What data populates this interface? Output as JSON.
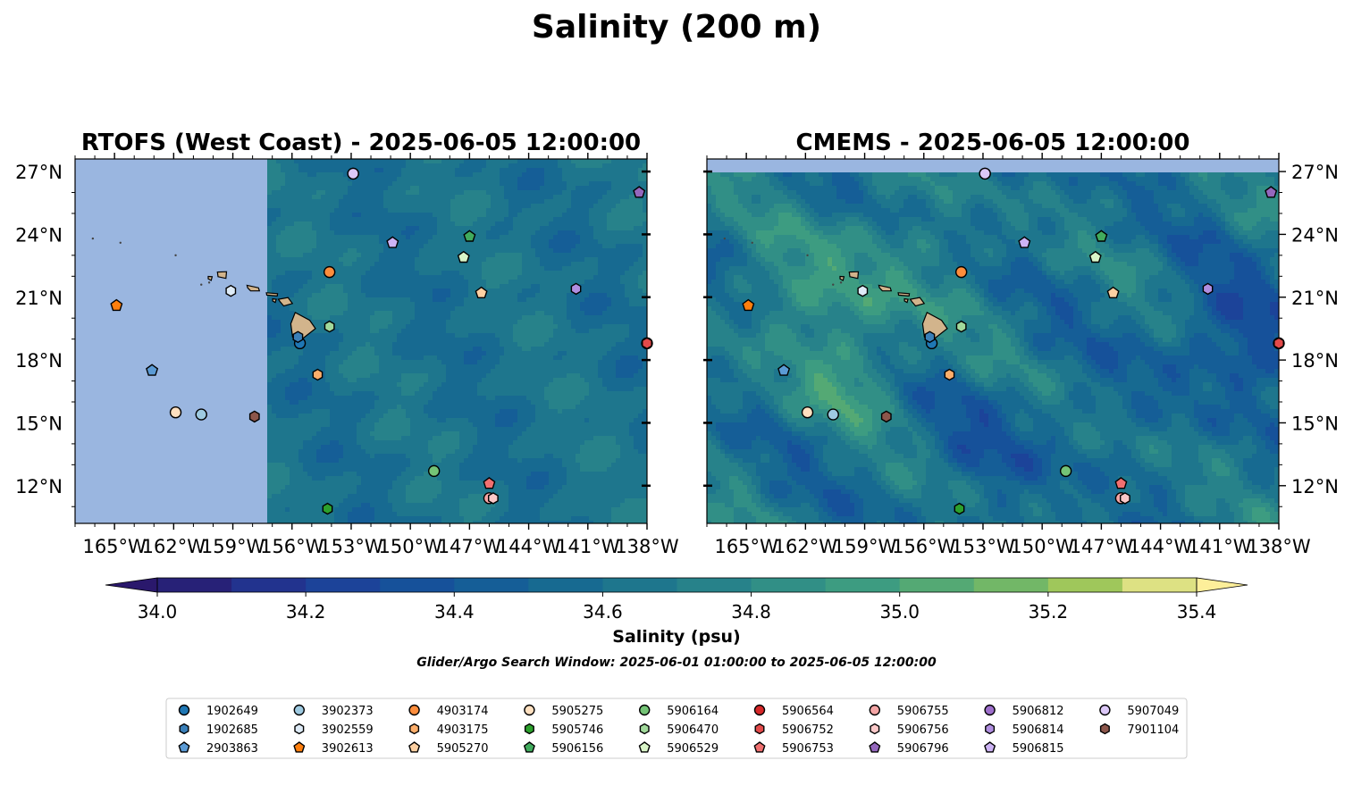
{
  "title": "Salinity (200 m)",
  "panels": [
    {
      "title": "RTOFS (West Coast) - 2025-06-05 12:00:00",
      "model_coverage_lon_min": -157.3
    },
    {
      "title": "CMEMS - 2025-06-05 12:00:00",
      "model_coverage_lat_max": 27.0
    }
  ],
  "colorbar": {
    "label": "Salinity (psu)",
    "ticks": [
      "34.0",
      "34.2",
      "34.4",
      "34.6",
      "34.8",
      "35.0",
      "35.2",
      "35.4"
    ],
    "tick_values": [
      34.0,
      34.2,
      34.4,
      34.6,
      34.8,
      35.0,
      35.2,
      35.4
    ],
    "levels_min": 34.0,
    "levels_max": 35.4,
    "level_step": 0.1,
    "extend": "both",
    "colormap": "haline"
  },
  "subtitle": "Glider/Argo Search Window: 2025-06-01 01:00:00 to 2025-06-05 12:00:00",
  "colors": {
    "land": "#d2b48c",
    "no_data": "#9ab6e0"
  },
  "chart_data": {
    "type": "scatter",
    "title": "Salinity (200 m)",
    "xlim": [
      -167,
      -138
    ],
    "ylim": [
      10.2,
      27.6
    ],
    "x_ticks": [
      "165°W",
      "162°W",
      "159°W",
      "156°W",
      "153°W",
      "150°W",
      "147°W",
      "144°W",
      "141°W",
      "138°W"
    ],
    "x_tick_values": [
      -165,
      -162,
      -159,
      -156,
      -153,
      -150,
      -147,
      -144,
      -141,
      -138
    ],
    "y_ticks": [
      "12°N",
      "15°N",
      "18°N",
      "21°N",
      "24°N",
      "27°N"
    ],
    "y_tick_values": [
      12,
      15,
      18,
      21,
      24,
      27
    ],
    "legend_position": "bottom-center",
    "legend_columns": 9,
    "series": [
      {
        "name": "1902649",
        "marker": "circle",
        "color": "#1f77b4",
        "lon": -155.6,
        "lat": 18.8
      },
      {
        "name": "1902685",
        "marker": "hexagon",
        "color": "#3a7fb8",
        "lon": -155.7,
        "lat": 19.1
      },
      {
        "name": "2903863",
        "marker": "pentagon",
        "color": "#5b9bd5",
        "lon": -163.1,
        "lat": 17.5
      },
      {
        "name": "3902373",
        "marker": "circle",
        "color": "#9ecae1",
        "lon": -160.6,
        "lat": 15.4
      },
      {
        "name": "3902559",
        "marker": "hexagon",
        "color": "#deebf7",
        "lon": -159.1,
        "lat": 21.3
      },
      {
        "name": "3902613",
        "marker": "pentagon",
        "color": "#ff7f0e",
        "lon": -164.9,
        "lat": 20.6
      },
      {
        "name": "4903174",
        "marker": "circle",
        "color": "#fd8d3c",
        "lon": -154.1,
        "lat": 22.2
      },
      {
        "name": "4903175",
        "marker": "hexagon",
        "color": "#fdae6b",
        "lon": -154.7,
        "lat": 17.3
      },
      {
        "name": "5905270",
        "marker": "pentagon",
        "color": "#fdd0a2",
        "lon": -146.4,
        "lat": 21.2
      },
      {
        "name": "5905275",
        "marker": "circle",
        "color": "#ffe0c0",
        "lon": -161.9,
        "lat": 15.5
      },
      {
        "name": "5905746",
        "marker": "hexagon",
        "color": "#2ca02c",
        "lon": -154.2,
        "lat": 10.9
      },
      {
        "name": "5906156",
        "marker": "pentagon",
        "color": "#41ab5d",
        "lon": -147.0,
        "lat": 23.9
      },
      {
        "name": "5906164",
        "marker": "circle",
        "color": "#74c476",
        "lon": -148.8,
        "lat": 12.7
      },
      {
        "name": "5906470",
        "marker": "hexagon",
        "color": "#a1d99b",
        "lon": -154.1,
        "lat": 19.6
      },
      {
        "name": "5906529",
        "marker": "pentagon",
        "color": "#d9f5c8",
        "lon": -147.3,
        "lat": 22.9
      },
      {
        "name": "5906564",
        "marker": "circle",
        "color": "#d62728",
        "lon": -138.0,
        "lat": 18.8
      },
      {
        "name": "5906752",
        "marker": "hexagon",
        "color": "#e34a4a",
        "lon": -138.0,
        "lat": 18.8
      },
      {
        "name": "5906753",
        "marker": "pentagon",
        "color": "#f07070",
        "lon": -146.0,
        "lat": 12.1
      },
      {
        "name": "5906755",
        "marker": "circle",
        "color": "#f4a5a5",
        "lon": -146.0,
        "lat": 11.4
      },
      {
        "name": "5906756",
        "marker": "hexagon",
        "color": "#fbc9c9",
        "lon": -145.8,
        "lat": 11.4
      },
      {
        "name": "5906796",
        "marker": "pentagon",
        "color": "#9467bd",
        "lon": -138.4,
        "lat": 26.0
      },
      {
        "name": "5906812",
        "marker": "circle",
        "color": "#9e6fcc",
        "lon": -152.9,
        "lat": 26.9
      },
      {
        "name": "5906814",
        "marker": "hexagon",
        "color": "#b08ee0",
        "lon": -141.6,
        "lat": 21.4
      },
      {
        "name": "5906815",
        "marker": "pentagon",
        "color": "#cdb3f5",
        "lon": -150.9,
        "lat": 23.6
      },
      {
        "name": "5907049",
        "marker": "circle",
        "color": "#dcc8f8",
        "lon": -152.9,
        "lat": 26.9
      },
      {
        "name": "7901104",
        "marker": "hexagon",
        "color": "#8c564b",
        "lon": -157.9,
        "lat": 15.3
      }
    ]
  }
}
